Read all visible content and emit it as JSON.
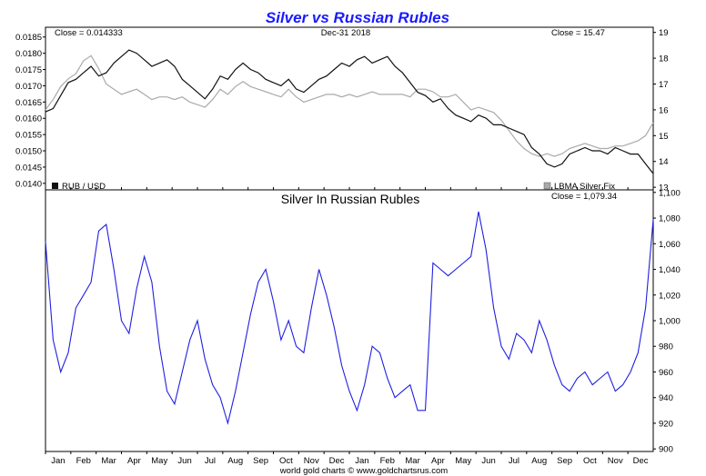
{
  "chart_data": [
    {
      "type": "line",
      "panel": "top",
      "title": "Silver vs Russian Rubles",
      "date_label": "Dec-31  2018",
      "left_close_label": "Close = 0.014333",
      "right_close_label": "Close = 15.47",
      "left_axis": {
        "ylim": [
          0.0138,
          0.0188
        ],
        "ticks": [
          "0.0185",
          "0.0180",
          "0.0175",
          "0.0170",
          "0.0165",
          "0.0160",
          "0.0155",
          "0.0150",
          "0.0145",
          "0.0140"
        ]
      },
      "right_axis": {
        "ylim": [
          12.9,
          19.2
        ],
        "ticks": [
          "19",
          "18",
          "17",
          "16",
          "15",
          "14",
          "13"
        ]
      },
      "series": [
        {
          "name": "RUB / USD",
          "axis": "left",
          "color": "#111111",
          "x": [
            0.0,
            0.3,
            0.6,
            0.9,
            1.2,
            1.5,
            1.8,
            2.1,
            2.4,
            2.7,
            3.0,
            3.3,
            3.6,
            3.9,
            4.2,
            4.5,
            4.8,
            5.1,
            5.4,
            5.7,
            6.0,
            6.3,
            6.6,
            6.9,
            7.2,
            7.5,
            7.8,
            8.1,
            8.4,
            8.7,
            9.0,
            9.3,
            9.6,
            9.9,
            10.2,
            10.5,
            10.8,
            11.1,
            11.4,
            11.7,
            12.0,
            12.3,
            12.6,
            12.9,
            13.2,
            13.5,
            13.8,
            14.1,
            14.4,
            14.7,
            15.0,
            15.3,
            15.6,
            15.9,
            16.2,
            16.5,
            16.8,
            17.1,
            17.4,
            17.7,
            18.0,
            18.3,
            18.6,
            18.9,
            19.2,
            19.5,
            19.8,
            20.1,
            20.4,
            20.7,
            21.0,
            21.3,
            21.6,
            21.9,
            22.2,
            22.5,
            22.8,
            23.1,
            23.4,
            23.7,
            24.0
          ],
          "values": [
            0.0162,
            0.0163,
            0.0167,
            0.0171,
            0.0172,
            0.0174,
            0.0176,
            0.0173,
            0.0174,
            0.0177,
            0.0179,
            0.0181,
            0.018,
            0.0178,
            0.0176,
            0.0177,
            0.0178,
            0.0176,
            0.0172,
            0.017,
            0.0168,
            0.0166,
            0.0169,
            0.0173,
            0.0172,
            0.0175,
            0.0177,
            0.0175,
            0.0174,
            0.0172,
            0.0171,
            0.017,
            0.0172,
            0.0169,
            0.0168,
            0.017,
            0.0172,
            0.0173,
            0.0175,
            0.0177,
            0.0176,
            0.0178,
            0.0179,
            0.0177,
            0.0178,
            0.0179,
            0.0176,
            0.0174,
            0.0171,
            0.0168,
            0.0167,
            0.0165,
            0.0166,
            0.0163,
            0.0161,
            0.016,
            0.0159,
            0.0161,
            0.016,
            0.0158,
            0.0158,
            0.0157,
            0.0156,
            0.0155,
            0.0151,
            0.0149,
            0.0146,
            0.0145,
            0.0146,
            0.0149,
            0.015,
            0.0151,
            0.015,
            0.015,
            0.0149,
            0.0151,
            0.015,
            0.0149,
            0.0149,
            0.0146,
            0.0143
          ]
        },
        {
          "name": "LBMA Silver Fix",
          "axis": "right",
          "color": "#aaaaaa",
          "x": [
            0.0,
            0.3,
            0.6,
            0.9,
            1.2,
            1.5,
            1.8,
            2.1,
            2.4,
            2.7,
            3.0,
            3.3,
            3.6,
            3.9,
            4.2,
            4.5,
            4.8,
            5.1,
            5.4,
            5.7,
            6.0,
            6.3,
            6.6,
            6.9,
            7.2,
            7.5,
            7.8,
            8.1,
            8.4,
            8.7,
            9.0,
            9.3,
            9.6,
            9.9,
            10.2,
            10.5,
            10.8,
            11.1,
            11.4,
            11.7,
            12.0,
            12.3,
            12.6,
            12.9,
            13.2,
            13.5,
            13.8,
            14.1,
            14.4,
            14.7,
            15.0,
            15.3,
            15.6,
            15.9,
            16.2,
            16.5,
            16.8,
            17.1,
            17.4,
            17.7,
            18.0,
            18.3,
            18.6,
            18.9,
            19.2,
            19.5,
            19.8,
            20.1,
            20.4,
            20.7,
            21.0,
            21.3,
            21.6,
            21.9,
            22.2,
            22.5,
            22.8,
            23.1,
            23.4,
            23.7,
            24.0
          ],
          "values": [
            16.0,
            16.4,
            16.9,
            17.2,
            17.4,
            17.9,
            18.1,
            17.6,
            17.0,
            16.8,
            16.6,
            16.7,
            16.8,
            16.6,
            16.4,
            16.5,
            16.5,
            16.4,
            16.5,
            16.3,
            16.2,
            16.1,
            16.4,
            16.8,
            16.6,
            16.9,
            17.1,
            16.9,
            16.8,
            16.7,
            16.6,
            16.5,
            16.8,
            16.5,
            16.3,
            16.4,
            16.5,
            16.6,
            16.6,
            16.5,
            16.6,
            16.5,
            16.6,
            16.7,
            16.6,
            16.6,
            16.6,
            16.6,
            16.5,
            16.8,
            16.8,
            16.7,
            16.5,
            16.5,
            16.6,
            16.3,
            16.0,
            16.1,
            16.0,
            15.9,
            15.6,
            15.2,
            14.8,
            14.5,
            14.3,
            14.2,
            14.3,
            14.2,
            14.3,
            14.5,
            14.6,
            14.7,
            14.6,
            14.5,
            14.5,
            14.6,
            14.6,
            14.7,
            14.8,
            15.0,
            15.5
          ]
        }
      ],
      "legend": [
        "RUB / USD",
        "LBMA Silver Fix"
      ]
    },
    {
      "type": "line",
      "panel": "bottom",
      "title": "Silver In Russian Rubles",
      "close_label": "Close = 1,079.34",
      "ylim": [
        898,
        1102
      ],
      "ticks": [
        "1,100",
        "1,080",
        "1,060",
        "1,040",
        "1,020",
        "1,000",
        "980",
        "960",
        "940",
        "920",
        "900"
      ],
      "series": [
        {
          "name": "Silver In Russian Rubles",
          "color": "#2020e0",
          "x": [
            0.0,
            0.3,
            0.6,
            0.9,
            1.2,
            1.5,
            1.8,
            2.1,
            2.4,
            2.7,
            3.0,
            3.3,
            3.6,
            3.9,
            4.2,
            4.5,
            4.8,
            5.1,
            5.4,
            5.7,
            6.0,
            6.3,
            6.6,
            6.9,
            7.2,
            7.5,
            7.8,
            8.1,
            8.4,
            8.7,
            9.0,
            9.3,
            9.6,
            9.9,
            10.2,
            10.5,
            10.8,
            11.1,
            11.4,
            11.7,
            12.0,
            12.3,
            12.6,
            12.9,
            13.2,
            13.5,
            13.8,
            14.1,
            14.4,
            14.7,
            15.0,
            15.3,
            15.6,
            15.9,
            16.2,
            16.5,
            16.8,
            17.1,
            17.4,
            17.7,
            18.0,
            18.3,
            18.6,
            18.9,
            19.2,
            19.5,
            19.8,
            20.1,
            20.4,
            20.7,
            21.0,
            21.3,
            21.6,
            21.9,
            22.2,
            22.5,
            22.8,
            23.1,
            23.4,
            23.7,
            24.0
          ],
          "values": [
            1062,
            985,
            960,
            975,
            1010,
            1020,
            1030,
            1070,
            1075,
            1040,
            1000,
            990,
            1025,
            1050,
            1030,
            980,
            945,
            935,
            960,
            985,
            1000,
            970,
            950,
            940,
            920,
            945,
            975,
            1005,
            1030,
            1040,
            1015,
            985,
            1000,
            980,
            975,
            1010,
            1040,
            1020,
            995,
            965,
            945,
            930,
            950,
            980,
            975,
            955,
            940,
            945,
            950,
            930,
            930,
            1045,
            1040,
            1035,
            1040,
            1045,
            1050,
            1085,
            1055,
            1010,
            980,
            970,
            990,
            985,
            975,
            1000,
            985,
            965,
            950,
            945,
            955,
            960,
            950,
            955,
            960,
            945,
            950,
            960,
            975,
            1010,
            1079
          ]
        }
      ]
    }
  ],
  "x_axis": {
    "months": [
      "Jan",
      "Feb",
      "Mar",
      "Apr",
      "May",
      "Jun",
      "Jul",
      "Aug",
      "Sep",
      "Oct",
      "Nov",
      "Dec",
      "Jan",
      "Feb",
      "Mar",
      "Apr",
      "May",
      "Jun",
      "Jul",
      "Aug",
      "Sep",
      "Oct",
      "Nov",
      "Dec"
    ]
  },
  "footer": "world gold charts © www.goldchartsrus.com"
}
